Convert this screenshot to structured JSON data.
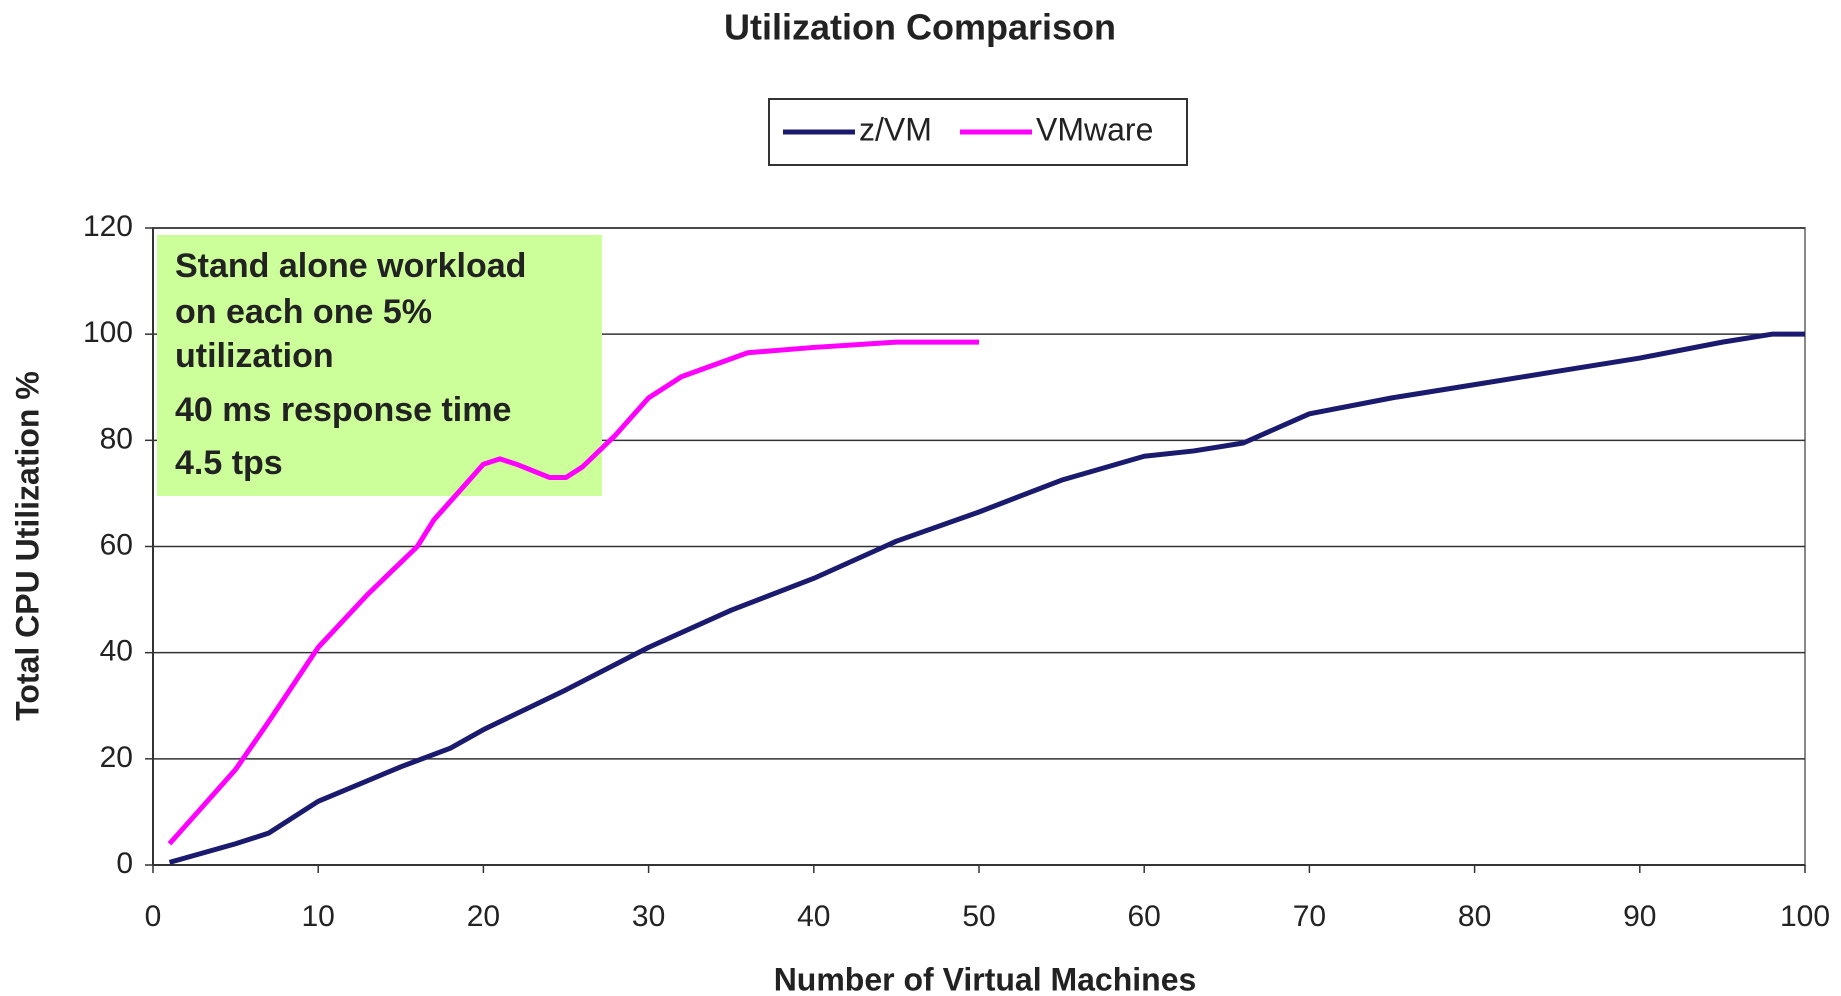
{
  "chart_data": {
    "type": "line",
    "title": "Utilization Comparison",
    "x_label": "Number of Virtual Machines",
    "y_label": "Total CPU Utilization %",
    "xlim": [
      0,
      100
    ],
    "xticks": [
      0,
      10,
      20,
      30,
      40,
      50,
      60,
      70,
      80,
      90,
      100
    ],
    "ylim": [
      0,
      120
    ],
    "yticks": [
      0,
      20,
      40,
      60,
      80,
      100,
      120
    ],
    "grid": true,
    "annotation": [
      "Stand alone workload",
      "on each one 5%",
      "utilization",
      "40 ms response time",
      "4.5 tps"
    ],
    "series": [
      {
        "name": "z/VM",
        "color": "#1a1a6e",
        "x": [
          1,
          5,
          7,
          10,
          15,
          18,
          20,
          25,
          30,
          35,
          40,
          45,
          50,
          55,
          60,
          63,
          66,
          70,
          75,
          80,
          85,
          90,
          95,
          98,
          100
        ],
        "values": [
          0.5,
          4,
          6,
          12,
          18.5,
          22,
          25.5,
          33,
          41,
          48,
          54,
          61,
          66.5,
          72.5,
          77,
          78,
          79.5,
          85,
          88,
          90.5,
          93,
          95.5,
          98.5,
          100,
          100
        ]
      },
      {
        "name": "VMware",
        "color": "#ff00ff",
        "x": [
          1,
          3,
          5,
          7,
          10,
          13,
          16,
          17,
          19,
          20,
          21,
          22,
          24,
          25,
          26,
          28,
          30,
          32,
          36,
          40,
          45,
          50
        ],
        "values": [
          4,
          11,
          18,
          27,
          41,
          51,
          60,
          65,
          72,
          75.5,
          76.5,
          75.5,
          73,
          73,
          75,
          81,
          88,
          92,
          96.5,
          97.5,
          98.5,
          98.5
        ]
      }
    ]
  }
}
